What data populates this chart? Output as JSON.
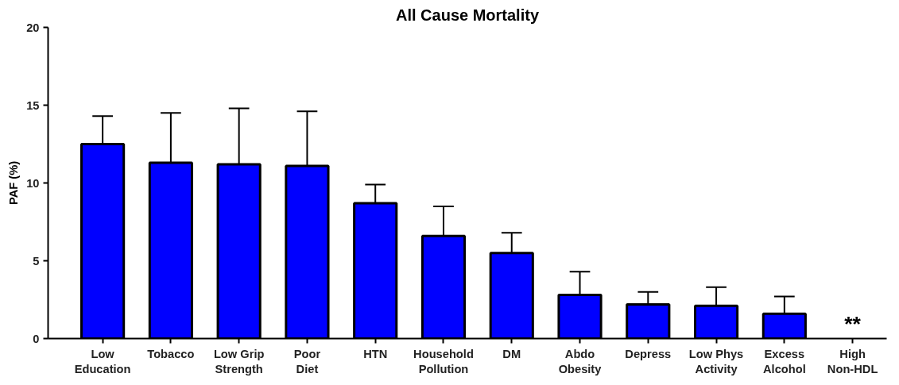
{
  "chart_data": {
    "type": "bar",
    "title": "All Cause Mortality",
    "ylabel": "PAF (%)",
    "categories": [
      "Low\nEducation",
      "Tobacco",
      "Low Grip\nStrength",
      "Poor\nDiet",
      "HTN",
      "Household\nPollution",
      "DM",
      "Abdo\nObesity",
      "Depress",
      "Low Phys\nActivity",
      "Excess\nAlcohol",
      "High\nNon-HDL"
    ],
    "values": [
      12.5,
      11.3,
      11.2,
      11.1,
      8.7,
      6.6,
      5.5,
      2.8,
      2.2,
      2.1,
      1.6,
      null
    ],
    "errors": [
      [
        12.5,
        14.3
      ],
      [
        11.3,
        14.5
      ],
      [
        11.2,
        14.8
      ],
      [
        11.1,
        14.6
      ],
      [
        8.7,
        9.9
      ],
      [
        6.6,
        8.5
      ],
      [
        5.5,
        6.8
      ],
      [
        2.8,
        4.3
      ],
      [
        2.2,
        3.0
      ],
      [
        2.1,
        3.3
      ],
      [
        1.6,
        2.7
      ],
      null
    ],
    "color": "#0000ff",
    "ylim": [
      0,
      20
    ],
    "yticks": [
      0,
      5,
      10,
      15,
      20
    ],
    "grid": false,
    "annotations": [
      "**"
    ]
  }
}
